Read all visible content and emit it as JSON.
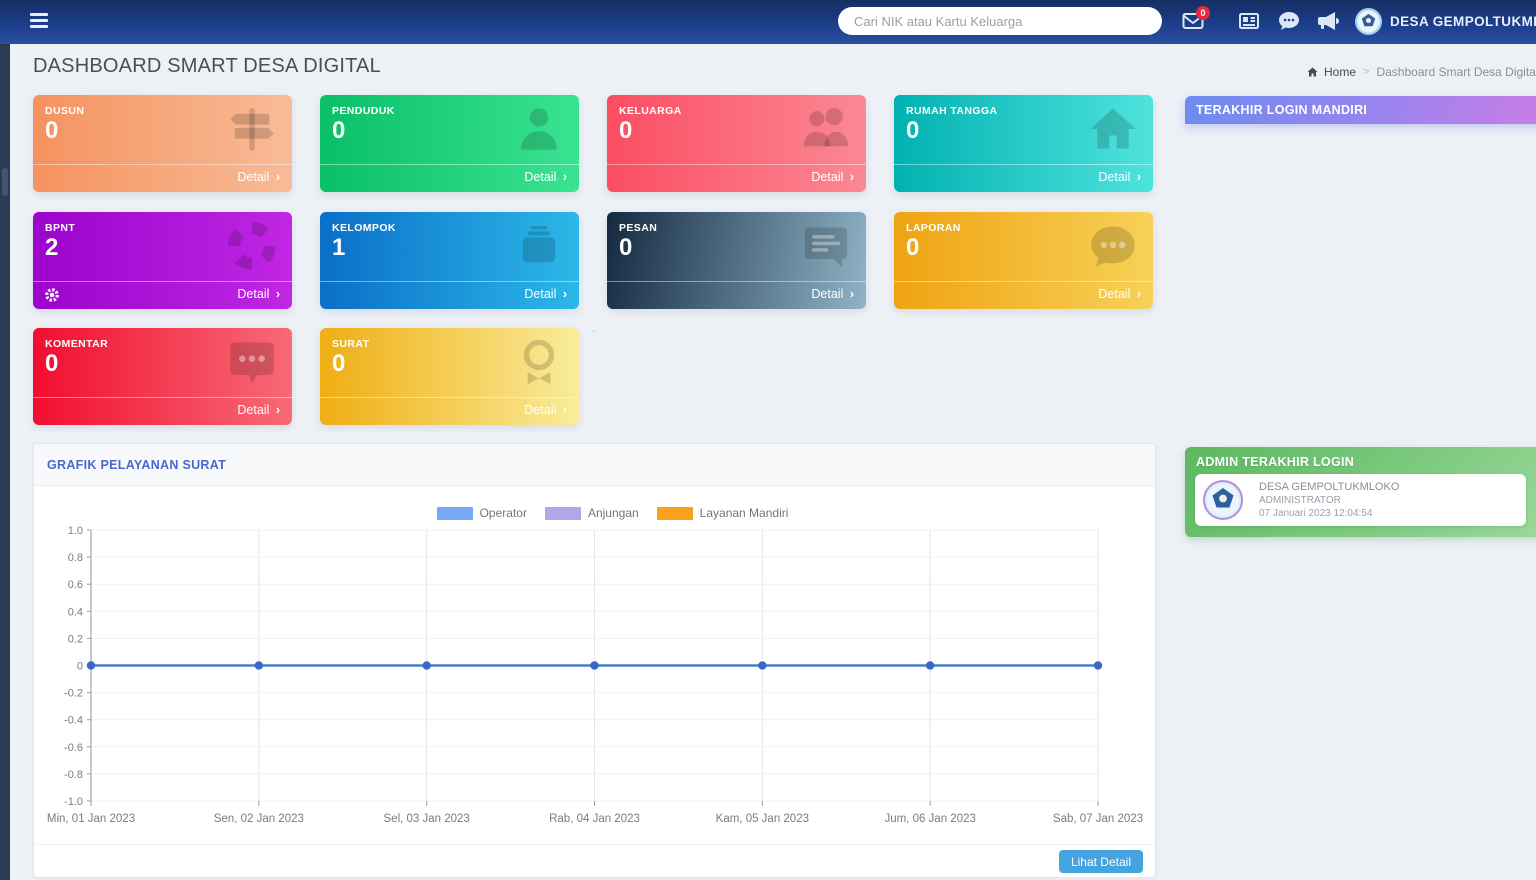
{
  "navbar": {
    "search_placeholder": "Cari NIK atau Kartu Keluarga",
    "mail_badge_count": "0",
    "user_name": "DESA GEMPOLTUKMLOKO"
  },
  "page": {
    "title": "DASHBOARD SMART DESA DIGITAL",
    "breadcrumb_home": "Home",
    "breadcrumb_sep": ">",
    "breadcrumb_current": "Dashboard Smart Desa Digital",
    "stray_mark": "`"
  },
  "cards": [
    {
      "label": "DUSUN",
      "value": "0",
      "detail": "Detail",
      "icon": "signpost-icon",
      "color_from": "#f5925f",
      "color_to": "#f8bb97"
    },
    {
      "label": "PENDUDUK",
      "value": "0",
      "detail": "Detail",
      "icon": "person-icon",
      "color_from": "#0abf68",
      "color_to": "#3ae391"
    },
    {
      "label": "KELUARGA",
      "value": "0",
      "detail": "Detail",
      "icon": "people-icon",
      "color_from": "#fb4d62",
      "color_to": "#fb8894"
    },
    {
      "label": "RUMAH TANGGA",
      "value": "0",
      "detail": "Detail",
      "icon": "home-icon",
      "color_from": "#01b1b1",
      "color_to": "#4fe3dd"
    },
    {
      "label": "BPNT",
      "value": "2",
      "detail": "Detail",
      "icon": "lifebuoy-icon",
      "footer_icon": "gear-icon",
      "color_from": "#9c03cc",
      "color_to": "#c026e3"
    },
    {
      "label": "KELOMPOK",
      "value": "1",
      "detail": "Detail",
      "icon": "briefcase-icon",
      "color_from": "#0a6fc8",
      "color_to": "#2cb8e8"
    },
    {
      "label": "PESAN",
      "value": "0",
      "detail": "Detail",
      "icon": "message-icon",
      "color_from": "#152a40",
      "color_to": "#8fb4c6"
    },
    {
      "label": "LAPORAN",
      "value": "0",
      "detail": "Detail",
      "icon": "chat-dots-icon",
      "color_from": "#efa312",
      "color_to": "#f7d157"
    },
    {
      "label": "KOMENTAR",
      "value": "0",
      "detail": "Detail",
      "icon": "comment-icon",
      "color_from": "#f20d30",
      "color_to": "#f76b76"
    },
    {
      "label": "SURAT",
      "value": "0",
      "detail": "Detail",
      "icon": "award-icon",
      "color_from": "#efae14",
      "color_to": "#f9ec9a"
    }
  ],
  "chart_panel": {
    "title": "GRAFIK PELAYANAN SURAT",
    "detail_button": "Lihat Detail"
  },
  "chart_data": {
    "type": "line",
    "title": "GRAFIK PELAYANAN SURAT",
    "x_labels": [
      "Min, 01 Jan 2023",
      "Sen, 02 Jan 2023",
      "Sel, 03 Jan 2023",
      "Rab, 04 Jan 2023",
      "Kam, 05 Jan 2023",
      "Jum, 06 Jan 2023",
      "Sab, 07 Jan 2023"
    ],
    "series": [
      {
        "name": "Operator",
        "swatch_color": "#78a9f5",
        "line_color": "#4a7bd0",
        "point_color": "#3b67c5",
        "values": [
          0,
          0,
          0,
          0,
          0,
          0,
          0
        ]
      },
      {
        "name": "Anjungan",
        "swatch_color": "#b3a6e6",
        "values": []
      },
      {
        "name": "Layanan Mandiri",
        "swatch_color": "#f9a11c",
        "values": []
      }
    ],
    "ylim": [
      -1,
      1
    ],
    "ytick_labels": [
      "1.0",
      "0.8",
      "0.6",
      "0.4",
      "0.2",
      "0",
      "-0.2",
      "-0.4",
      "-0.6",
      "-0.8",
      "-1.0"
    ],
    "grid": true,
    "legend_position": "top"
  },
  "right_column": {
    "mandiri_panel": {
      "title": "TERAKHIR LOGIN MANDIRI"
    },
    "admin_panel": {
      "title": "ADMIN TERAKHIR LOGIN",
      "name": "DESA GEMPOLTUKMLOKO",
      "role": "ADMINISTRATOR",
      "datetime": "07 Januari 2023 12:04:54"
    }
  }
}
